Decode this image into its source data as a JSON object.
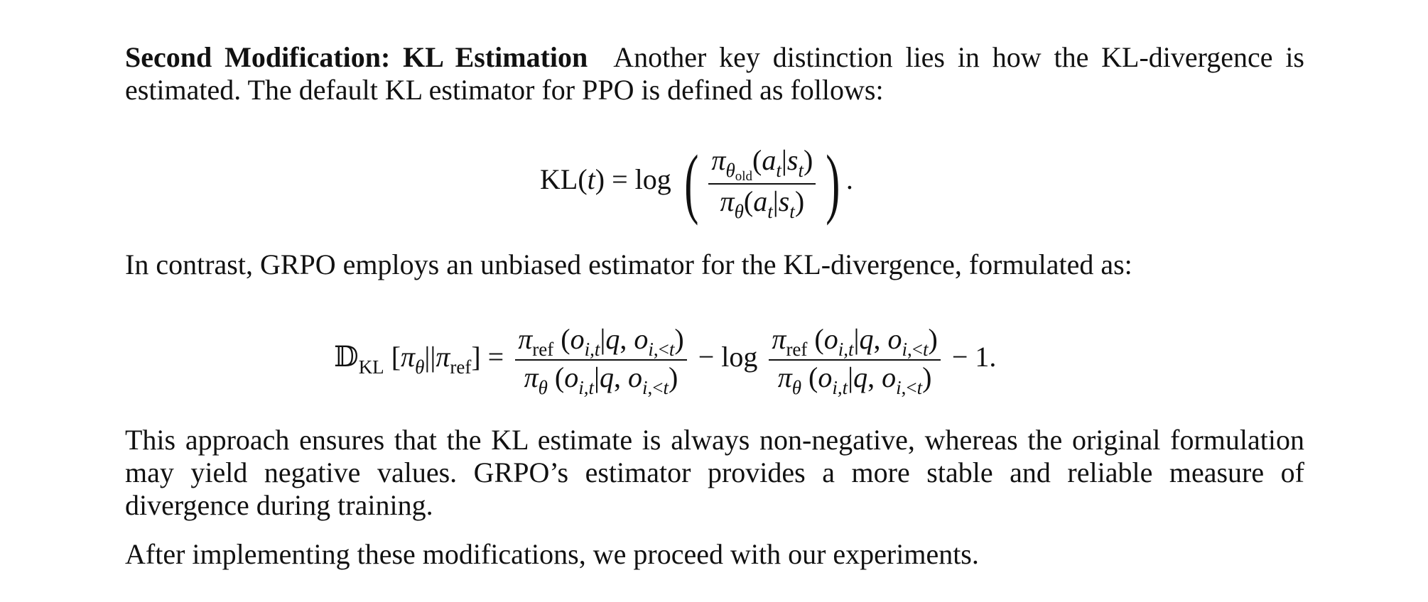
{
  "paragraph1": {
    "heading": "Second Modification: KL Estimation",
    "text": "Another key distinction lies in how the KL-divergence is estimated. The default KL estimator for PPO is defined as follows:"
  },
  "equation1": {
    "lhs": "KL(t) = log",
    "numerator": "πθold(at|st)",
    "denominator": "πθ(at|st)",
    "tail": "."
  },
  "paragraph2": {
    "text": "In contrast, GRPO employs an unbiased estimator for the KL-divergence, formulated as:"
  },
  "equation2": {
    "lhs": "𝔻KL [πθ||πref] =",
    "frac1_numerator": "πref (oi,t|q, oi,<t)",
    "frac1_denominator": "πθ (oi,t|q, oi,<t)",
    "middle": "− log",
    "frac2_numerator": "πref (oi,t|q, oi,<t)",
    "frac2_denominator": "πθ (oi,t|q, oi,<t)",
    "tail": "− 1."
  },
  "paragraph3": {
    "text": "This approach ensures that the KL estimate is always non-negative, whereas the original formulation may yield negative values. GRPO’s estimator provides a more stable and reliable measure of divergence during training."
  },
  "paragraph4": {
    "text": "After implementing these modifications, we proceed with our experiments."
  }
}
